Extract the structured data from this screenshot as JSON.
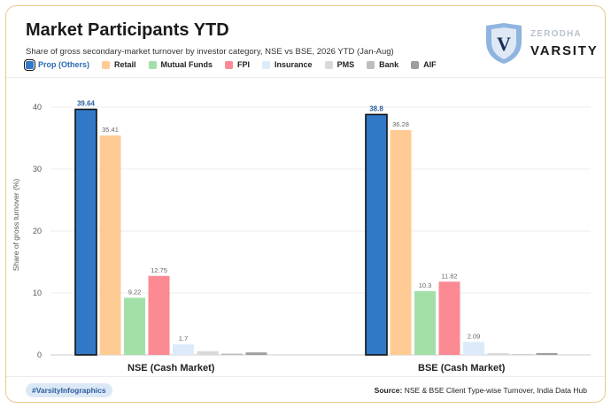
{
  "header": {
    "title": "Market Participants YTD",
    "subtitle": "Share of gross secondary-market turnover by investor category, NSE vs BSE, 2026 YTD (Jan-Aug)"
  },
  "brand": {
    "logo_letter": "V",
    "company": "ZERODHA",
    "product": "VARSITY",
    "shield_icon": "shield-icon"
  },
  "colors": {
    "Prop (Others)": "#3178c6",
    "Retail": "#ffcb95",
    "Mutual Funds": "#a3e0a8",
    "FPI": "#fb8a93",
    "Insurance": "#dceafa",
    "PMS": "#d9d9d9",
    "Bank": "#bdbdbd",
    "AIF": "#9e9e9e",
    "card_border": "#e8c98a"
  },
  "chart_data": {
    "type": "bar",
    "categories": [
      "NSE (Cash Market)",
      "BSE (Cash Market)"
    ],
    "ylabel": "Share of gross turnover (%)",
    "xlabel": "",
    "ylim": [
      0,
      42
    ],
    "yticks": [
      0,
      10,
      20,
      30,
      40
    ],
    "grid": true,
    "legend_position": "top-left",
    "highlighted_series": "Prop (Others)",
    "series": [
      {
        "name": "Prop (Others)",
        "values": [
          39.64,
          38.8
        ],
        "labels": [
          "39.64",
          "38.8"
        ]
      },
      {
        "name": "Retail",
        "values": [
          35.41,
          36.28
        ],
        "labels": [
          "35.41",
          "36.28"
        ]
      },
      {
        "name": "Mutual Funds",
        "values": [
          9.22,
          10.3
        ],
        "labels": [
          "9.22",
          "10.3"
        ]
      },
      {
        "name": "FPI",
        "values": [
          12.75,
          11.82
        ],
        "labels": [
          "12.75",
          "11.82"
        ]
      },
      {
        "name": "Insurance",
        "values": [
          1.7,
          2.09
        ],
        "labels": [
          "1.7",
          "2.09"
        ]
      },
      {
        "name": "PMS",
        "values": [
          0.6,
          0.3
        ],
        "labels": [
          "",
          ""
        ]
      },
      {
        "name": "Bank",
        "values": [
          0.2,
          0.1
        ],
        "labels": [
          "",
          ""
        ]
      },
      {
        "name": "AIF",
        "values": [
          0.4,
          0.3
        ],
        "labels": [
          "",
          ""
        ]
      }
    ]
  },
  "footer": {
    "hashtag": "#VarsityInfographics",
    "source_label": "Source:",
    "source_text": "NSE & BSE Client Type-wise Turnover, India Data Hub"
  }
}
